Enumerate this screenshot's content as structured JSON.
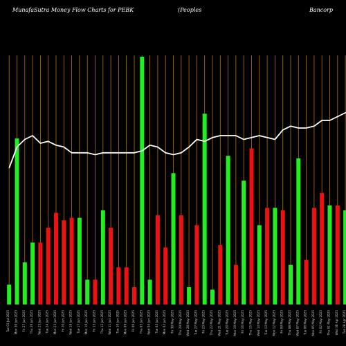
{
  "title_parts": {
    "part1": "MunafaSutra  Money Flow  Charts for PEBK",
    "part2": "(Peoples",
    "part3": "Bancorp"
  },
  "colors": {
    "background": "#000000",
    "up": "#22ee22",
    "down": "#ee1111",
    "line": "#ffffff",
    "gridline": "#b8720c",
    "text": "#ffffff"
  },
  "chart_data": {
    "type": "bar",
    "title": "MunafaSutra  Money Flow  Charts for PEBK (Peoples Bancorp",
    "grid": "vertical",
    "legend": "none",
    "categories": [
      "Tue 01 Jul 2025",
      "Mon 30 Jun 2025",
      "Fri 27 Jun 2025",
      "Thu 26 Jun 2025",
      "Wed 25 Jun 2025",
      "Tue 24 Jun 2025",
      "Mon 23 Jun 2025",
      "Fri 20 Jun 2025",
      "Wed 18 Jun 2025",
      "Tue 17 Jun 2025",
      "Mon 16 Jun 2025",
      "Fri 13 Jun 2025",
      "Thu 12 Jun 2025",
      "Wed 11 Jun 2025",
      "Tue 10 Jun 2025",
      "Mon 09 Jun 2025",
      "Fri 06 Jun 2025",
      "Thu 05 Jun 2025",
      "Wed 04 Jun 2025",
      "Tue 03 Jun 2025",
      "Mon 02 Jun 2025",
      "Fri 30 May 2025",
      "Thu 29 May 2025",
      "Wed 28 May 2025",
      "Tue 27 May 2025",
      "Fri 23 May 2025",
      "Thu 22 May 2025",
      "Wed 21 May 2025",
      "Tue 20 May 2025",
      "Mon 19 May 2025",
      "Fri 16 May 2025",
      "Thu 15 May 2025",
      "Wed 14 May 2025",
      "Tue 13 May 2025",
      "Mon 12 May 2025",
      "Fri 09 May 2025",
      "Thu 08 May 2025",
      "Wed 07 May 2025",
      "Tue 06 May 2025",
      "Mon 05 May 2025",
      "Fri 02 May 2025",
      "Thu 01 May 2025",
      "Wed 30 Apr 2025",
      "Tue 29 Apr 2025",
      "Mon 28 Apr 2025"
    ],
    "bar_direction": [
      "up",
      "up",
      "up",
      "up",
      "down",
      "down",
      "down",
      "down",
      "down",
      "up",
      "up",
      "down",
      "up",
      "down",
      "down",
      "down",
      "down",
      "up",
      "up",
      "down",
      "down",
      "up",
      "down",
      "up",
      "down",
      "up",
      "up",
      "down",
      "up",
      "down",
      "up",
      "down",
      "up",
      "down",
      "up",
      "down",
      "up",
      "up",
      "down",
      "down",
      "down",
      "up",
      "down",
      "up",
      "up"
    ],
    "values": [
      8,
      67,
      17,
      25,
      25,
      31,
      37,
      34,
      35,
      35,
      10,
      10,
      38,
      31,
      15,
      15,
      7,
      100,
      10,
      36,
      23,
      53,
      36,
      7,
      32,
      77,
      6,
      24,
      60,
      16,
      50,
      63,
      32,
      39,
      39,
      38,
      16,
      59,
      18,
      39,
      45,
      40,
      40,
      38,
      35
    ],
    "line_values": [
      59,
      70,
      74,
      76,
      72,
      73,
      71,
      70,
      67,
      67,
      67,
      66,
      67,
      67,
      67,
      67,
      67,
      68,
      71,
      70,
      67,
      66,
      67,
      70,
      74,
      73,
      75,
      76,
      76,
      76,
      74,
      75,
      76,
      75,
      74,
      79,
      81,
      80,
      80,
      81,
      84,
      84,
      86,
      88,
      89
    ],
    "ylim": [
      0,
      100
    ]
  }
}
